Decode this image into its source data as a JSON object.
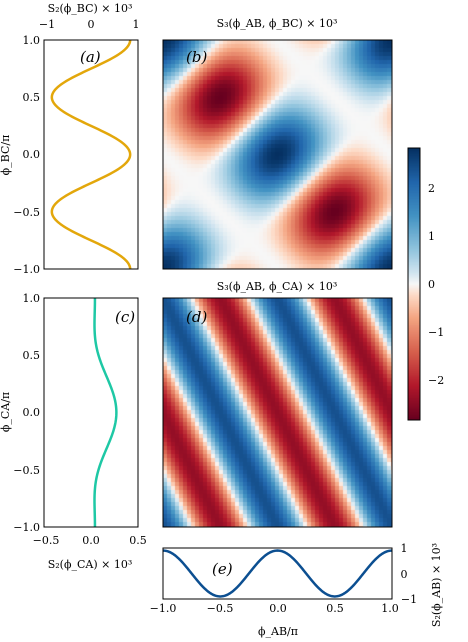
{
  "chart_data": [
    {
      "type": "line",
      "panel_label": "(a)",
      "orientation": "vertical",
      "top_label": "S₂(ϕ_BC) × 10³",
      "ylabel": "ϕ_BC/π",
      "xlim": [
        -1.2,
        1.2
      ],
      "ylim": [
        -1,
        1
      ],
      "xticks": [
        "−1",
        "0",
        "1"
      ],
      "yticks": [
        "−1.0",
        "−0.5",
        "0.0",
        "0.5",
        "1.0"
      ],
      "color": "#e3a70b",
      "y": [
        -1.0,
        -0.75,
        -0.5,
        -0.25,
        0.0,
        0.25,
        0.5,
        0.75,
        1.0
      ],
      "x": [
        1.0,
        0.0,
        -1.0,
        0.0,
        1.0,
        0.0,
        -1.0,
        0.0,
        1.0
      ]
    },
    {
      "type": "heatmap",
      "panel_label": "(b)",
      "title": "S₃(ϕ_AB, ϕ_BC) × 10³",
      "xlim": [
        -1,
        1
      ],
      "ylim": [
        -1,
        1
      ],
      "features": [
        {
          "x": 0.0,
          "y": 0.0,
          "value": 2.6
        },
        {
          "x": -0.5,
          "y": 0.5,
          "value": -2.6
        },
        {
          "x": 0.5,
          "y": -0.5,
          "value": -2.6
        },
        {
          "x": -1.0,
          "y": -1.0,
          "value": 2.6
        },
        {
          "x": 1.0,
          "y": 1.0,
          "value": 2.6
        }
      ]
    },
    {
      "type": "line",
      "panel_label": "(c)",
      "orientation": "vertical",
      "bottom_label": "S₂(ϕ_CA) × 10³",
      "ylabel": "ϕ_CA/π",
      "xlim": [
        -0.5,
        0.5
      ],
      "ylim": [
        -1,
        1
      ],
      "xticks": [
        "−0.5",
        "0.0",
        "0.5"
      ],
      "yticks": [
        "−1.0",
        "−0.5",
        "0.0",
        "0.5",
        "1.0"
      ],
      "color": "#1ec8a5",
      "y": [
        -1.0,
        -0.75,
        -0.5,
        -0.25,
        0.0,
        0.25,
        0.5,
        0.75,
        1.0
      ],
      "x": [
        -0.1,
        -0.08,
        -0.02,
        0.17,
        0.28,
        0.17,
        -0.02,
        -0.08,
        -0.1
      ]
    },
    {
      "type": "heatmap",
      "panel_label": "(d)",
      "title": "S₃(ϕ_AB, ϕ_CA) × 10³",
      "xlim": [
        -1,
        1
      ],
      "ylim": [
        -1,
        1
      ],
      "features": [
        {
          "x": -0.5,
          "y": 0.25,
          "value": -2.6
        },
        {
          "x": 0.5,
          "y": 0.25,
          "value": -2.6
        },
        {
          "x": -0.75,
          "y": 0.0,
          "value": 2.6
        },
        {
          "x": 0.0,
          "y": 0.5,
          "value": 2.6
        },
        {
          "x": 0.75,
          "y": -0.5,
          "value": 2.6
        }
      ]
    },
    {
      "type": "line",
      "panel_label": "(e)",
      "right_label": "S₂(ϕ_AB) × 10³",
      "xlabel": "ϕ_AB/π",
      "xlim": [
        -1,
        1
      ],
      "ylim": [
        -1,
        1
      ],
      "xticks": [
        "−1.0",
        "−0.5",
        "0.0",
        "0.5",
        "1.0"
      ],
      "yticks": [
        "−1",
        "0",
        "1"
      ],
      "color": "#0c4f91",
      "x": [
        -1.0,
        -0.75,
        -0.5,
        -0.25,
        0.0,
        0.25,
        0.5,
        0.75,
        1.0
      ],
      "y": [
        1.0,
        0.0,
        -1.0,
        0.0,
        1.0,
        0.0,
        -1.0,
        0.0,
        1.0
      ]
    },
    {
      "type": "colorbar",
      "range": [
        -2.8,
        2.8
      ],
      "ticks": [
        "2",
        "1",
        "0",
        "−1",
        "−2"
      ],
      "cmap": "RdBu"
    }
  ]
}
